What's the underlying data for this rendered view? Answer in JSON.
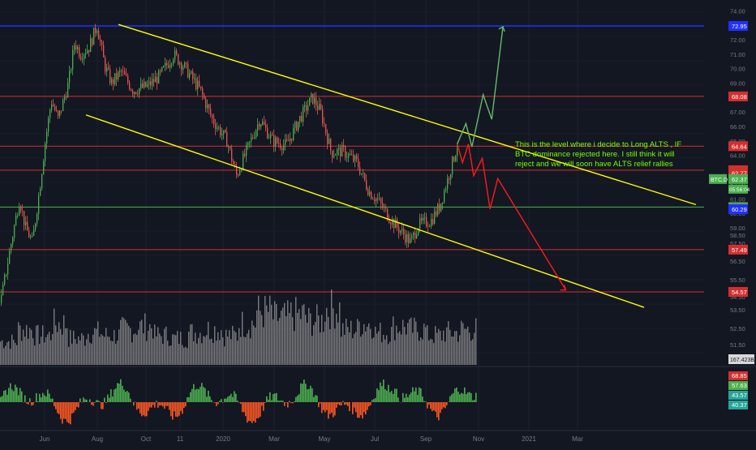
{
  "colors": {
    "background": "#131722",
    "candle_up": "#26a69a",
    "candle_green": "#4caf50",
    "candle_down": "#ef5350",
    "trend_line": "#ffff00",
    "projection_green": "#66bb6a",
    "projection_red": "#ff1a1a",
    "blue_level": "#2130ff",
    "red_level": "#d32f2f",
    "green_level": "#4caf50",
    "annotation_text": "#76ff03",
    "volume": "#9e9e9e",
    "axis_text": "#787b86"
  },
  "annotation": {
    "lines": [
      "This is the level where i decide to Long ALTS , IF",
      "BTC dominance rejected here. I still think it will",
      "reject and we will soon have ALTS relief rallies"
    ]
  },
  "price_axis": {
    "ticks": [
      "74.00",
      "73.00",
      "72.00",
      "71.00",
      "70.00",
      "69.00",
      "68.00",
      "67.00",
      "66.00",
      "65.00",
      "64.00",
      "63.00",
      "62.00",
      "61.00",
      "60.00",
      "59.00",
      "58.50",
      "57.50",
      "56.50",
      "55.50",
      "54.50",
      "53.50",
      "52.50",
      "51.50",
      "50.50"
    ],
    "labels": [
      {
        "text": "72.95",
        "color": "#2130ff",
        "value": 72.95
      },
      {
        "text": "68.08",
        "color": "#d32f2f",
        "value": 68.08
      },
      {
        "text": "64.64",
        "color": "#d32f2f",
        "value": 64.64
      },
      {
        "text": "62.98",
        "color": "#d32f2f",
        "value": 62.98
      },
      {
        "text": "62.77",
        "color": "#d32f2f",
        "value": 62.77
      },
      {
        "text": "60.43",
        "color": "#4caf50",
        "value": 60.43
      },
      {
        "text": "60.29",
        "color": "#2130ff",
        "value": 60.29
      },
      {
        "text": "57.49",
        "color": "#d32f2f",
        "value": 57.49
      },
      {
        "text": "54.57",
        "color": "#d32f2f",
        "value": 54.57
      }
    ],
    "current": {
      "symbol": "BTC.D",
      "price": "62.37",
      "time": "05:56:04",
      "value": 62.37
    },
    "volume_label": "167.423B"
  },
  "time_axis": {
    "labels": [
      "Jun",
      "Aug",
      "Oct",
      "11",
      "2020",
      "Mar",
      "May",
      "Jul",
      "Sep",
      "Nov",
      "2021",
      "Mar"
    ]
  },
  "oscillator": {
    "labels": [
      "68.85",
      "57.63",
      "43.57",
      "40.37"
    ]
  },
  "chart_data": {
    "type": "candlestick",
    "symbol": "BTC.D",
    "ylim": [
      50.0,
      74.5
    ],
    "horizontal_levels": [
      72.95,
      68.08,
      64.64,
      62.98,
      60.43,
      57.49,
      54.57
    ],
    "price_path": [
      {
        "t": "2019-05-14",
        "v": 53.8
      },
      {
        "t": "2019-05-25",
        "v": 57.5
      },
      {
        "t": "2019-06-05",
        "v": 61.0
      },
      {
        "t": "2019-06-12",
        "v": 59.0
      },
      {
        "t": "2019-06-20",
        "v": 58.0
      },
      {
        "t": "2019-06-28",
        "v": 61.5
      },
      {
        "t": "2019-07-05",
        "v": 65.0
      },
      {
        "t": "2019-07-12",
        "v": 67.8
      },
      {
        "t": "2019-07-20",
        "v": 66.5
      },
      {
        "t": "2019-08-01",
        "v": 69.0
      },
      {
        "t": "2019-08-08",
        "v": 71.8
      },
      {
        "t": "2019-08-15",
        "v": 71.0
      },
      {
        "t": "2019-08-25",
        "v": 71.5
      },
      {
        "t": "2019-09-03",
        "v": 73.0
      },
      {
        "t": "2019-09-12",
        "v": 70.2
      },
      {
        "t": "2019-09-20",
        "v": 69.0
      },
      {
        "t": "2019-10-01",
        "v": 69.8
      },
      {
        "t": "2019-10-15",
        "v": 68.5
      },
      {
        "t": "2019-11-01",
        "v": 68.8
      },
      {
        "t": "2019-11-15",
        "v": 69.5
      },
      {
        "t": "2019-12-01",
        "v": 71.0
      },
      {
        "t": "2019-12-15",
        "v": 70.0
      },
      {
        "t": "2020-01-01",
        "v": 68.5
      },
      {
        "t": "2020-01-15",
        "v": 66.5
      },
      {
        "t": "2020-02-01",
        "v": 65.0
      },
      {
        "t": "2020-02-12",
        "v": 62.6
      },
      {
        "t": "2020-02-25",
        "v": 64.5
      },
      {
        "t": "2020-03-10",
        "v": 66.5
      },
      {
        "t": "2020-03-25",
        "v": 65.0
      },
      {
        "t": "2020-04-10",
        "v": 64.7
      },
      {
        "t": "2020-04-25",
        "v": 66.5
      },
      {
        "t": "2020-05-10",
        "v": 68.0
      },
      {
        "t": "2020-05-20",
        "v": 67.0
      },
      {
        "t": "2020-06-01",
        "v": 64.2
      },
      {
        "t": "2020-06-15",
        "v": 64.3
      },
      {
        "t": "2020-07-01",
        "v": 63.5
      },
      {
        "t": "2020-07-15",
        "v": 61.5
      },
      {
        "t": "2020-07-25",
        "v": 60.9
      },
      {
        "t": "2020-08-10",
        "v": 59.5
      },
      {
        "t": "2020-08-25",
        "v": 58.5
      },
      {
        "t": "2020-09-01",
        "v": 58.0
      },
      {
        "t": "2020-09-10",
        "v": 59.2
      },
      {
        "t": "2020-09-25",
        "v": 59.5
      },
      {
        "t": "2020-10-05",
        "v": 60.5
      },
      {
        "t": "2020-10-15",
        "v": 62.5
      },
      {
        "t": "2020-10-22",
        "v": 64.0
      },
      {
        "t": "2020-10-26",
        "v": 64.8
      }
    ],
    "volume_path": [
      0.4,
      0.6,
      0.5,
      0.7,
      0.45,
      0.55,
      0.5,
      0.6,
      0.65,
      0.5,
      0.45,
      0.55,
      0.6,
      0.5,
      0.7,
      0.9,
      0.8,
      0.85,
      0.75,
      0.95,
      0.6,
      0.7,
      0.55,
      0.65,
      0.6,
      0.5,
      0.55,
      0.6
    ],
    "projection_green": [
      {
        "t": "2020-10-26",
        "v": 64.8
      },
      {
        "t": "2020-11-05",
        "v": 66.2
      },
      {
        "t": "2020-11-12",
        "v": 64.6
      },
      {
        "t": "2020-11-25",
        "v": 68.2
      },
      {
        "t": "2020-12-05",
        "v": 66.5
      },
      {
        "t": "2020-12-18",
        "v": 72.9
      }
    ],
    "projection_red": [
      {
        "t": "2020-10-26",
        "v": 64.8
      },
      {
        "t": "2020-11-01",
        "v": 63.5
      },
      {
        "t": "2020-11-08",
        "v": 64.8
      },
      {
        "t": "2020-11-14",
        "v": 62.6
      },
      {
        "t": "2020-11-24",
        "v": 63.8
      },
      {
        "t": "2020-12-03",
        "v": 60.3
      },
      {
        "t": "2020-12-12",
        "v": 62.4
      },
      {
        "t": "2021-03-01",
        "v": 54.7
      }
    ],
    "channel_upper": [
      {
        "t": "2019-09-01",
        "v": 73.05
      },
      {
        "t": "2021-06-15",
        "v": 60.6
      }
    ],
    "channel_lower": [
      {
        "t": "2019-07-28",
        "v": 66.8
      },
      {
        "t": "2021-05-20",
        "v": 53.5
      }
    ]
  }
}
